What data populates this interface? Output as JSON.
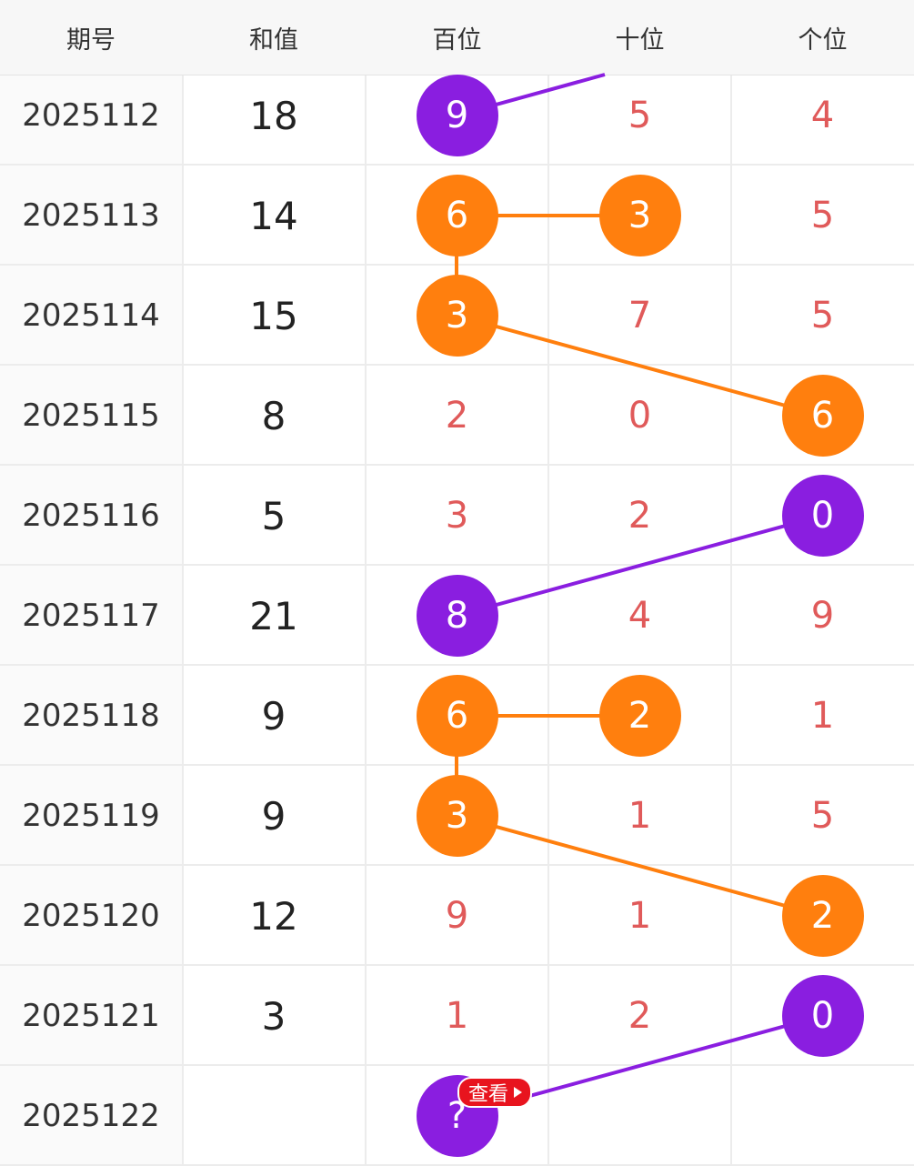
{
  "header": {
    "issue_label": "期号",
    "sum_label": "和值",
    "hundreds_label": "百位",
    "tens_label": "十位",
    "units_label": "个位"
  },
  "colors": {
    "orange": "#ff7f0e",
    "purple": "#8a1ee0",
    "digit_red": "#e05a5a",
    "badge_red": "#e8141e"
  },
  "rows": [
    {
      "issue": "2025112",
      "sum": "18",
      "h": "9",
      "t": "5",
      "u": "4",
      "ball": "h",
      "color": "purple"
    },
    {
      "issue": "2025113",
      "sum": "14",
      "h": "6",
      "t": "3",
      "u": "5",
      "ball": "h",
      "ball2": "t",
      "color": "orange"
    },
    {
      "issue": "2025114",
      "sum": "15",
      "h": "3",
      "t": "7",
      "u": "5",
      "ball": "h",
      "color": "orange"
    },
    {
      "issue": "2025115",
      "sum": "8",
      "h": "2",
      "t": "0",
      "u": "6",
      "ball": "u",
      "color": "orange"
    },
    {
      "issue": "2025116",
      "sum": "5",
      "h": "3",
      "t": "2",
      "u": "0",
      "ball": "u",
      "color": "purple"
    },
    {
      "issue": "2025117",
      "sum": "21",
      "h": "8",
      "t": "4",
      "u": "9",
      "ball": "h",
      "color": "purple"
    },
    {
      "issue": "2025118",
      "sum": "9",
      "h": "6",
      "t": "2",
      "u": "1",
      "ball": "h",
      "ball2": "t",
      "color": "orange"
    },
    {
      "issue": "2025119",
      "sum": "9",
      "h": "3",
      "t": "1",
      "u": "5",
      "ball": "h",
      "color": "orange"
    },
    {
      "issue": "2025120",
      "sum": "12",
      "h": "9",
      "t": "1",
      "u": "2",
      "ball": "u",
      "color": "orange"
    },
    {
      "issue": "2025121",
      "sum": "3",
      "h": "1",
      "t": "2",
      "u": "0",
      "ball": "u",
      "color": "purple"
    },
    {
      "issue": "2025122",
      "sum": "",
      "h": "?",
      "t": "",
      "u": "",
      "ball": "h",
      "color": "purple"
    }
  ],
  "badge": {
    "label": "查看",
    "icon": "play-triangle-icon"
  }
}
